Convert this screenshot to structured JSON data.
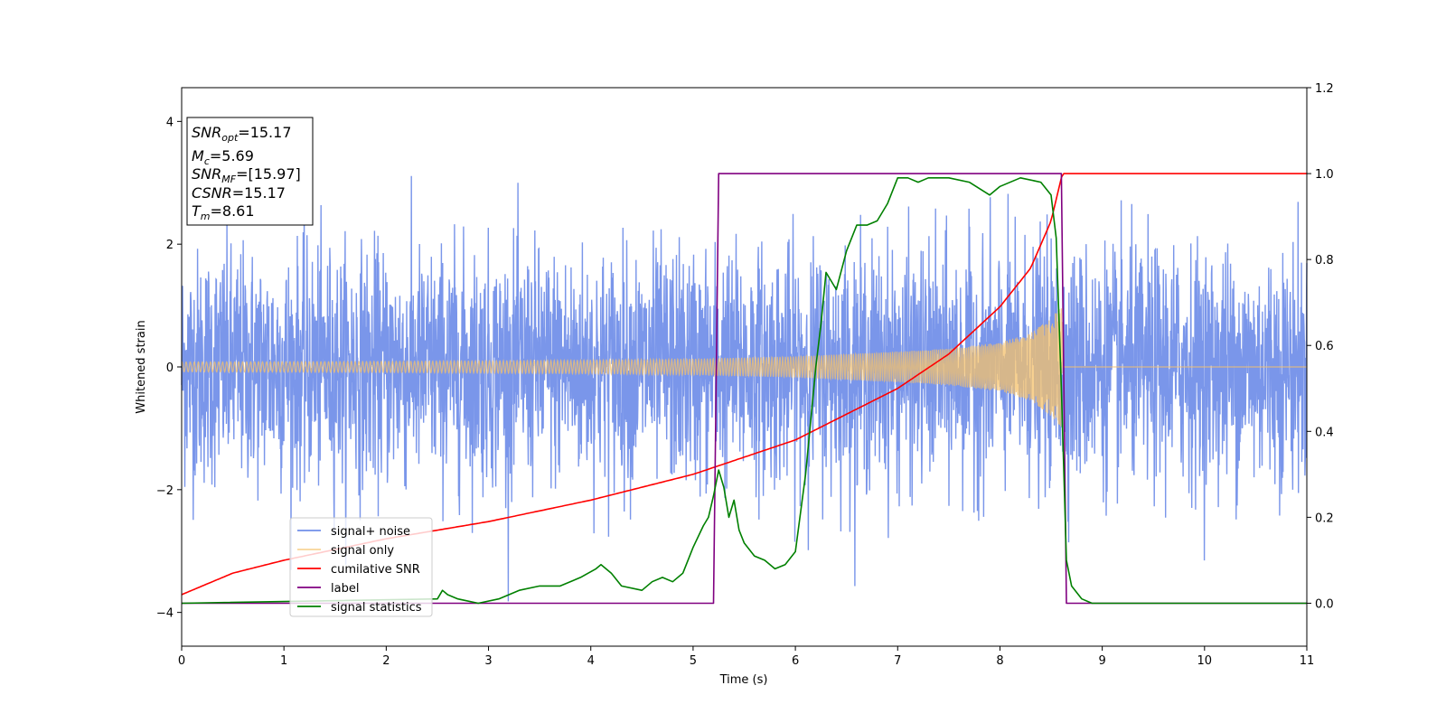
{
  "chart_data": {
    "type": "line",
    "title": "",
    "xlabel": "Time (s)",
    "ylabel": "Whitened strain",
    "ylabel_right": "",
    "xlim": [
      0,
      11
    ],
    "ylim_left": [
      -4.55,
      4.55
    ],
    "ylim_right": [
      -0.1,
      1.2
    ],
    "x_ticks": [
      "0",
      "1",
      "2",
      "3",
      "4",
      "5",
      "6",
      "7",
      "8",
      "9",
      "10",
      "11"
    ],
    "y_left_ticks": [
      "-4",
      "-2",
      "0",
      "2",
      "4"
    ],
    "y_right_ticks": [
      "0.0",
      "0.2",
      "0.4",
      "0.6",
      "0.8",
      "1.0",
      "1.2"
    ],
    "grid": false,
    "legend_position": "lower-left",
    "info_box": {
      "snr_opt": "=15.17",
      "mc": "=5.69",
      "snr_mf": "=[15.97]",
      "csnr": "=15.17",
      "tm": "=8.61"
    },
    "series": [
      {
        "name": "signal+ noise",
        "axis": "left",
        "color": "#4169e1",
        "description_stats": {
          "std": 1.0,
          "t_start": 0,
          "t_end": 11,
          "min_shown": -4.1,
          "max_shown": 4.2
        }
      },
      {
        "name": "signal only",
        "axis": "left",
        "color": "#f5c26b",
        "envelope": {
          "t": [
            0,
            2,
            4,
            5,
            6,
            7,
            7.5,
            8,
            8.3,
            8.5,
            8.61,
            8.62,
            11
          ],
          "amp": [
            0.08,
            0.09,
            0.11,
            0.13,
            0.17,
            0.25,
            0.3,
            0.4,
            0.55,
            0.8,
            1.0,
            0.0,
            0.0
          ]
        }
      },
      {
        "name": "cumilative SNR",
        "axis": "right",
        "color": "#ff0000",
        "x": [
          0,
          0.5,
          1,
          2,
          3,
          4,
          5,
          6,
          7,
          7.5,
          8,
          8.3,
          8.5,
          8.61,
          11
        ],
        "y": [
          0.02,
          0.07,
          0.1,
          0.15,
          0.19,
          0.24,
          0.3,
          0.38,
          0.5,
          0.58,
          0.69,
          0.78,
          0.89,
          1.0,
          1.0
        ]
      },
      {
        "name": "label",
        "axis": "right",
        "color": "#800080",
        "x": [
          0,
          5.2,
          5.25,
          8.6,
          8.65,
          11
        ],
        "y": [
          0,
          0,
          1.0,
          1.0,
          0,
          0
        ]
      },
      {
        "name": "signal statistics",
        "axis": "right",
        "color": "#008000",
        "x": [
          0,
          2.5,
          2.55,
          2.6,
          2.7,
          2.9,
          3.1,
          3.3,
          3.5,
          3.7,
          3.9,
          4.05,
          4.1,
          4.2,
          4.3,
          4.5,
          4.6,
          4.7,
          4.8,
          4.9,
          5.0,
          5.1,
          5.15,
          5.2,
          5.25,
          5.3,
          5.35,
          5.4,
          5.45,
          5.5,
          5.6,
          5.7,
          5.8,
          5.9,
          6.0,
          6.1,
          6.2,
          6.25,
          6.3,
          6.4,
          6.5,
          6.6,
          6.7,
          6.8,
          6.9,
          7.0,
          7.1,
          7.2,
          7.3,
          7.5,
          7.7,
          7.9,
          8.0,
          8.2,
          8.4,
          8.5,
          8.55,
          8.6,
          8.65,
          8.7,
          8.8,
          8.9,
          11
        ],
        "y": [
          0.0,
          0.01,
          0.03,
          0.02,
          0.01,
          0.0,
          0.01,
          0.03,
          0.04,
          0.04,
          0.06,
          0.08,
          0.09,
          0.07,
          0.04,
          0.03,
          0.05,
          0.06,
          0.05,
          0.07,
          0.13,
          0.18,
          0.2,
          0.25,
          0.31,
          0.27,
          0.2,
          0.24,
          0.17,
          0.14,
          0.11,
          0.1,
          0.08,
          0.09,
          0.12,
          0.3,
          0.55,
          0.65,
          0.77,
          0.73,
          0.82,
          0.88,
          0.88,
          0.89,
          0.93,
          0.99,
          0.99,
          0.98,
          0.99,
          0.99,
          0.98,
          0.95,
          0.97,
          0.99,
          0.98,
          0.95,
          0.85,
          0.5,
          0.1,
          0.04,
          0.01,
          0.0,
          0.0
        ]
      }
    ]
  }
}
